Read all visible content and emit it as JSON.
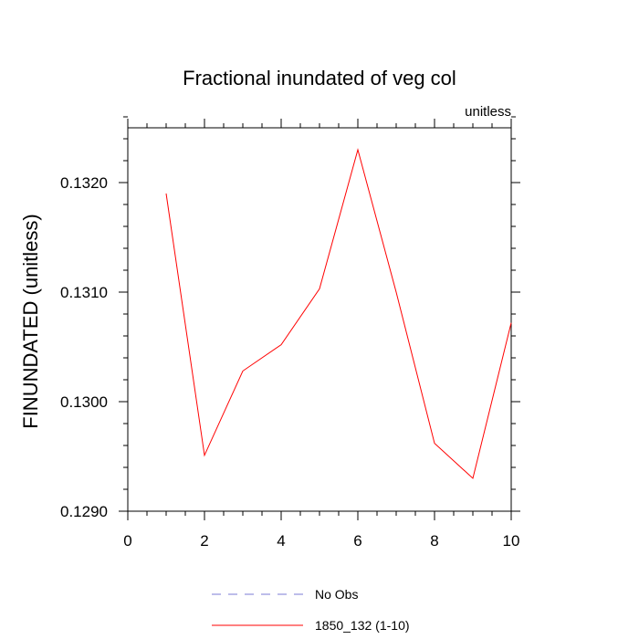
{
  "chart_data": {
    "type": "line",
    "title": "Fractional inundated of veg col",
    "units_label": "unitless",
    "xlabel": "",
    "ylabel": "FINUNDATED  (unitless)",
    "xlim": [
      0,
      10
    ],
    "ylim": [
      0.129,
      0.1325
    ],
    "x_ticks": [
      0,
      2,
      4,
      6,
      8,
      10
    ],
    "x_tick_labels": [
      "0",
      "2",
      "4",
      "6",
      "8",
      "10"
    ],
    "y_ticks": [
      0.129,
      0.13,
      0.131,
      0.132
    ],
    "y_tick_labels": [
      "0.1290",
      "0.1300",
      "0.1310",
      "0.1320"
    ],
    "grid": false,
    "legend_placement": "bottom",
    "series": [
      {
        "name": "1850_132 (1-10)",
        "color": "#ff0000",
        "style": "solid",
        "x": [
          1,
          2,
          3,
          4,
          5,
          6,
          7,
          8,
          9,
          10
        ],
        "y": [
          0.1319,
          0.12951,
          0.13028,
          0.13052,
          0.13103,
          0.1323,
          0.131,
          0.12962,
          0.1293,
          0.13072
        ]
      }
    ],
    "legend_entries": [
      {
        "label": "No Obs",
        "color": "#7b7bd6",
        "style": "dashed"
      },
      {
        "label": "1850_132 (1-10)",
        "color": "#ff0000",
        "style": "solid"
      }
    ]
  }
}
